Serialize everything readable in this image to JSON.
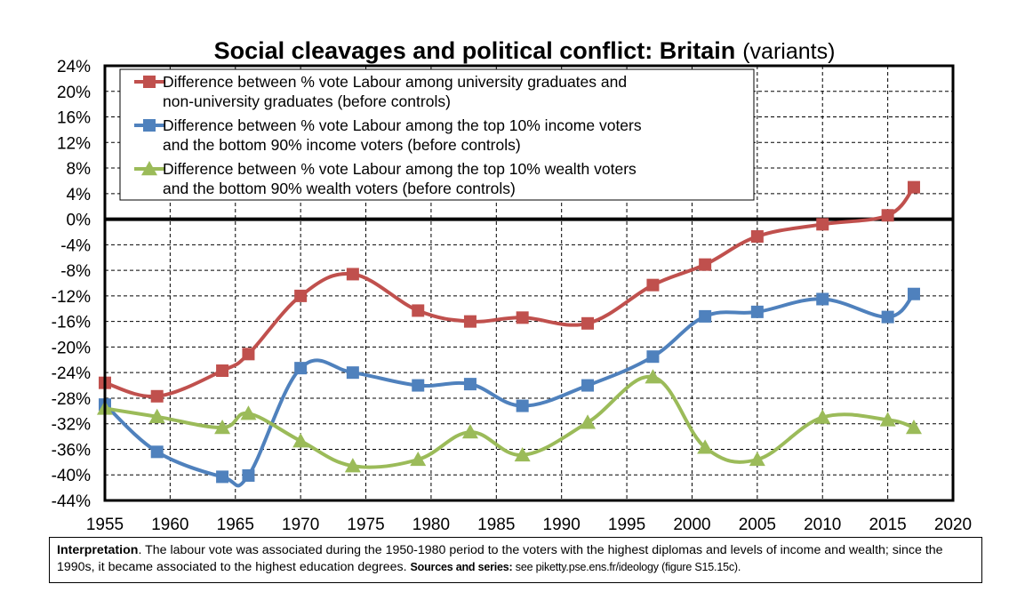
{
  "chart_data": {
    "type": "line",
    "title": "Social cleavages and political conflict: Britain",
    "subtitle": "(variants)",
    "xlabel": "",
    "ylabel": "",
    "xlim": [
      1955,
      2020
    ],
    "ylim": [
      -44,
      24
    ],
    "x_ticks": [
      "1955",
      "1960",
      "1965",
      "1970",
      "1975",
      "1980",
      "1985",
      "1990",
      "1995",
      "2000",
      "2005",
      "2010",
      "2015",
      "2020"
    ],
    "y_ticks": [
      "24%",
      "20%",
      "16%",
      "12%",
      "8%",
      "4%",
      "0%",
      "-4%",
      "-8%",
      "-12%",
      "-16%",
      "-20%",
      "-24%",
      "-28%",
      "-32%",
      "-36%",
      "-40%",
      "-44%"
    ],
    "grid": true,
    "legend_position": "top-left",
    "series": [
      {
        "name": "Difference between % vote Labour among university graduates and non-university graduates (before controls)",
        "legend_lines": [
          "Difference between % vote Labour among university graduates and",
          "non-university graduates (before controls)"
        ],
        "color": "#c0504d",
        "marker": "square",
        "x": [
          1955,
          1959,
          1964,
          1966,
          1970,
          1974,
          1979,
          1983,
          1987,
          1992,
          1997,
          2001,
          2005,
          2010,
          2015,
          2017
        ],
        "values": [
          -25.6,
          -27.7,
          -23.7,
          -21.1,
          -12.0,
          -8.6,
          -14.3,
          -16.0,
          -15.4,
          -16.3,
          -10.3,
          -7.1,
          -2.7,
          -0.8,
          0.6,
          5.0
        ]
      },
      {
        "name": "Difference between % vote Labour among the top 10% income voters and the bottom 90% income voters (before controls)",
        "legend_lines": [
          "Difference between % vote Labour among the top 10% income voters",
          "and the bottom 90% income voters (before controls)"
        ],
        "color": "#4f81bd",
        "marker": "square",
        "x": [
          1955,
          1959,
          1964,
          1966,
          1970,
          1974,
          1979,
          1983,
          1987,
          1992,
          1997,
          2001,
          2005,
          2010,
          2015,
          2017
        ],
        "values": [
          -29.0,
          -36.4,
          -40.3,
          -40.1,
          -23.3,
          -24.0,
          -26.0,
          -25.8,
          -29.2,
          -26.0,
          -21.5,
          -15.2,
          -14.5,
          -12.5,
          -15.3,
          -11.7
        ]
      },
      {
        "name": "Difference between % vote Labour among the top 10% wealth voters and the bottom 90% wealth voters (before controls)",
        "legend_lines": [
          "Difference between % vote Labour among the top 10% wealth voters",
          "and the bottom 90% wealth voters (before controls)"
        ],
        "color": "#9bbb59",
        "marker": "triangle",
        "x": [
          1955,
          1959,
          1964,
          1966,
          1970,
          1974,
          1979,
          1983,
          1987,
          1992,
          1997,
          2001,
          2005,
          2010,
          2015,
          2017
        ],
        "values": [
          -29.6,
          -30.9,
          -32.6,
          -30.4,
          -34.7,
          -38.6,
          -37.6,
          -33.3,
          -36.9,
          -31.8,
          -24.7,
          -35.7,
          -37.6,
          -31.0,
          -31.4,
          -32.6
        ]
      }
    ]
  },
  "note": {
    "interpretation_label": "Interpretation",
    "interpretation_text": ". The labour vote was associated during the 1950-1980 period to the voters with the highest diplomas and levels of income and wealth; since the 1990s, it became associated to the highest education degrees. ",
    "sources_label": "Sources and series:",
    "sources_text": " see piketty.pse.ens.fr/ideology (figure S15.15c)."
  }
}
